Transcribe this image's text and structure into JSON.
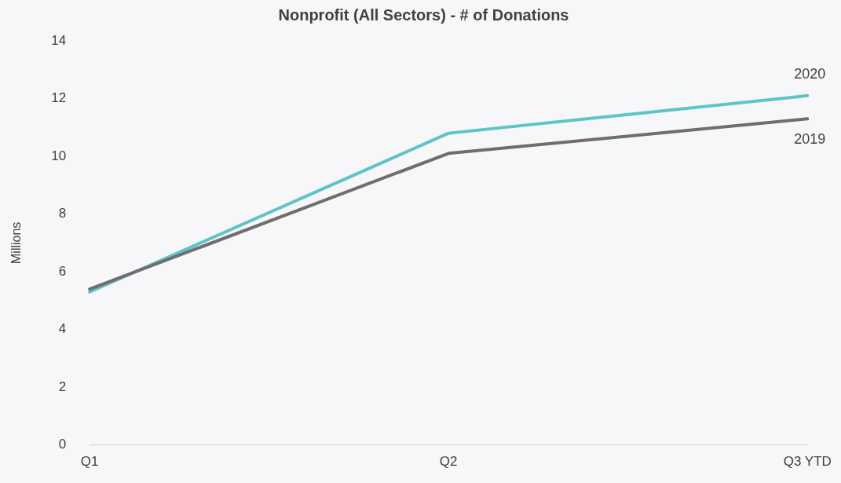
{
  "chart_data": {
    "type": "line",
    "title": "Nonprofit (All Sectors) - # of Donations",
    "ylabel": "Millions",
    "categories": [
      "Q1",
      "Q2",
      "Q3 YTD"
    ],
    "series": [
      {
        "name": "2019",
        "color": "#6e6e6e",
        "values": [
          5.4,
          10.1,
          11.3
        ]
      },
      {
        "name": "2020",
        "color": "#5cc5c8",
        "values": [
          5.3,
          10.8,
          12.1
        ]
      }
    ],
    "ylim": [
      0,
      14
    ],
    "yticks": [
      0,
      2,
      4,
      6,
      8,
      10,
      12,
      14
    ],
    "grid": false,
    "legend": false,
    "marker": "none",
    "line_style": "solid"
  }
}
